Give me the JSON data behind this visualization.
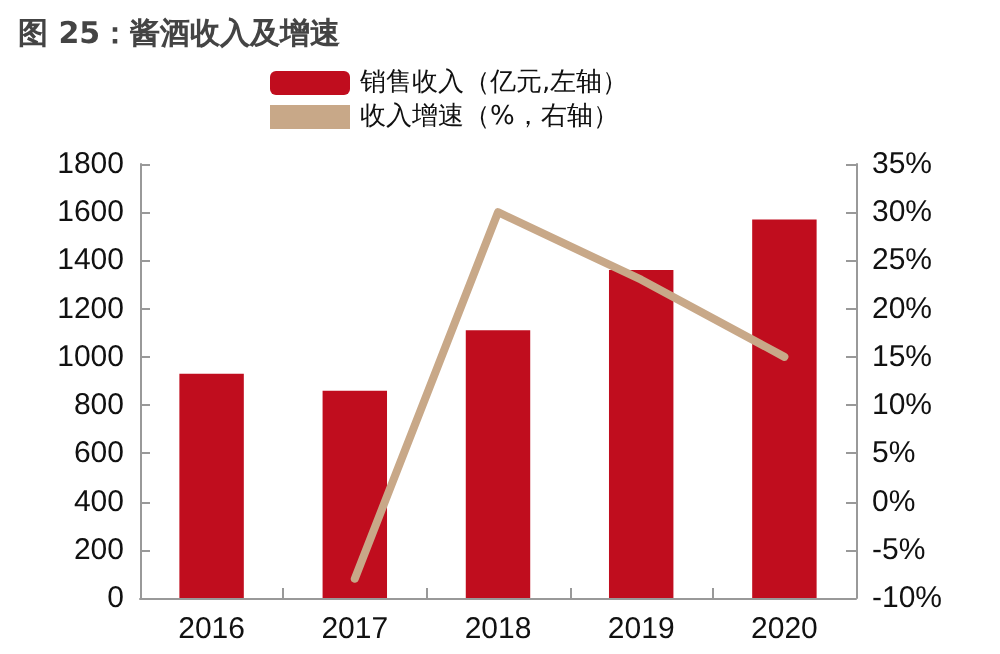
{
  "chart_data": {
    "type": "bar",
    "title": "图 25：酱酒收入及增速",
    "categories": [
      "2016",
      "2017",
      "2018",
      "2019",
      "2020"
    ],
    "series": [
      {
        "name": "销售收入（亿元,左轴）",
        "color": "#c00d1e",
        "values": [
          930,
          860,
          1110,
          1360,
          1570
        ]
      },
      {
        "name": "收入增速（%，右轴）",
        "type": "line",
        "axis": "y2",
        "color": "#c8a888",
        "values": [
          null,
          -8,
          30,
          23,
          15
        ]
      }
    ],
    "ylim": [
      0,
      1800
    ],
    "yticks": [
      0,
      200,
      400,
      600,
      800,
      1000,
      1200,
      1400,
      1600,
      1800
    ],
    "y2lim": [
      -10,
      35
    ],
    "y2ticks": [
      {
        "value": -10,
        "label": "-10%"
      },
      {
        "value": -5,
        "label": "-5%"
      },
      {
        "value": 0,
        "label": "0%"
      },
      {
        "value": 5,
        "label": "5%"
      },
      {
        "value": 10,
        "label": "10%"
      },
      {
        "value": 15,
        "label": "15%"
      },
      {
        "value": 20,
        "label": "20%"
      },
      {
        "value": 25,
        "label": "25%"
      },
      {
        "value": 30,
        "label": "30%"
      },
      {
        "value": 35,
        "label": "35%"
      }
    ],
    "legend": "top",
    "grid": false,
    "marker": "none"
  }
}
